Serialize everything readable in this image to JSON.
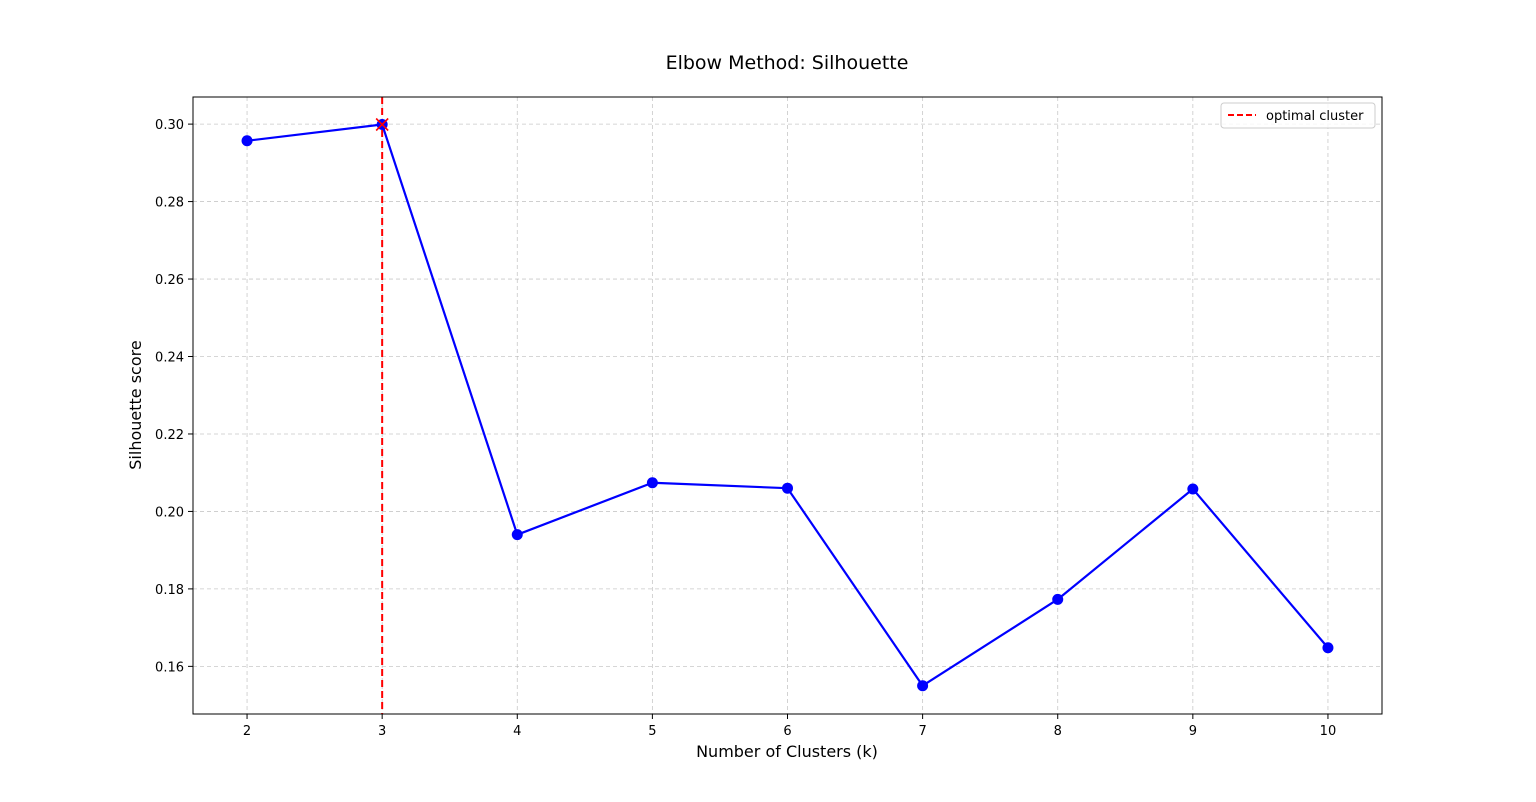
{
  "chart_data": {
    "type": "line",
    "title": "Elbow Method: Silhouette",
    "xlabel": "Number of Clusters (k)",
    "ylabel": "Silhouette score",
    "x": [
      2,
      3,
      4,
      5,
      6,
      7,
      8,
      9,
      10
    ],
    "series": [
      {
        "values": [
          0.2957,
          0.2999,
          0.194,
          0.2074,
          0.206,
          0.155,
          0.1773,
          0.2058,
          0.1648
        ],
        "color": "#0000ff",
        "marker": "circle"
      }
    ],
    "xlim": [
      1.6,
      10.4
    ],
    "ylim": [
      0.1477,
      0.307
    ],
    "xticks": [
      "2",
      "3",
      "4",
      "5",
      "6",
      "7",
      "8",
      "9",
      "10"
    ],
    "yticks": [
      "0.16",
      "0.18",
      "0.20",
      "0.22",
      "0.24",
      "0.26",
      "0.28",
      "0.30"
    ],
    "ytick_values": [
      0.16,
      0.18,
      0.2,
      0.22,
      0.24,
      0.26,
      0.28,
      0.3
    ],
    "optimal": {
      "x": 3,
      "y": 0.2999,
      "color": "#ff0000",
      "label": "optimal cluster"
    },
    "grid": true,
    "legend": {
      "position": "top-right",
      "entries": [
        "optimal cluster"
      ]
    }
  }
}
